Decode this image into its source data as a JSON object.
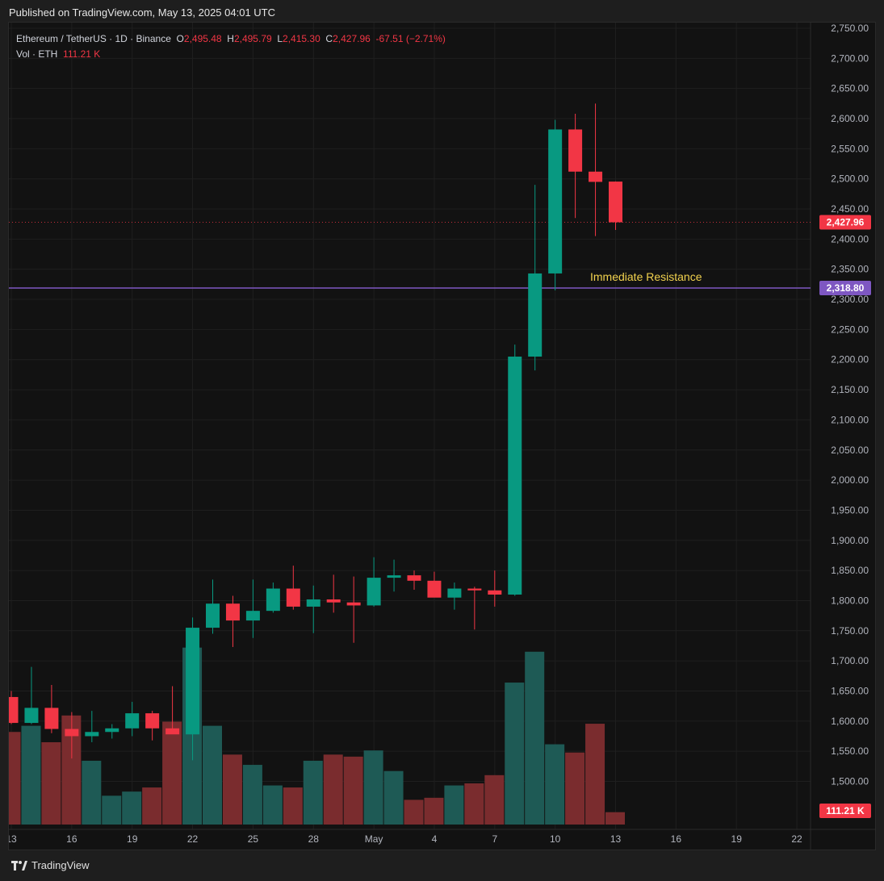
{
  "published": "Published on TradingView.com, May 13, 2025 04:01 UTC",
  "legend": {
    "symbol": "Ethereum / TetherUS · 1D · Binance",
    "o_label": "O",
    "o": "2,495.48",
    "h_label": "H",
    "h": "2,495.79",
    "l_label": "L",
    "l": "2,415.30",
    "c_label": "C",
    "c": "2,427.96",
    "change": "-67.51 (−2.71%)",
    "vol_label": "Vol · ETH",
    "vol": "111.21 K"
  },
  "brand": "TradingView",
  "colors": {
    "up": "#089981",
    "down": "#f23645",
    "bg": "#121212",
    "grid": "#1f1f1f",
    "resistance": "#7e57c2",
    "annotation": "#f2d24e",
    "vol_up": "#1e5a55",
    "vol_down": "#7a2c2e"
  },
  "chart_data": {
    "type": "candlestick",
    "price_axis": {
      "ticks": [
        "2,750.00",
        "2,700.00",
        "2,650.00",
        "2,600.00",
        "2,550.00",
        "2,500.00",
        "2,450.00",
        "2,400.00",
        "2,350.00",
        "2,300.00",
        "2,250.00",
        "2,200.00",
        "2,150.00",
        "2,100.00",
        "2,050.00",
        "2,000.00",
        "1,950.00",
        "1,900.00",
        "1,850.00",
        "1,800.00",
        "1,750.00",
        "1,700.00",
        "1,650.00",
        "1,600.00",
        "1,550.00",
        "1,500.00"
      ],
      "ylim": [
        1480,
        2765
      ]
    },
    "time_axis": {
      "labels": [
        "13",
        "16",
        "19",
        "22",
        "25",
        "28",
        "May",
        "4",
        "7",
        "10",
        "13",
        "16",
        "19",
        "22"
      ]
    },
    "candles": [
      {
        "date": "2025-04-12",
        "o": 1640,
        "h": 1650,
        "l": 1595,
        "c": 1597
      },
      {
        "date": "2025-04-13",
        "o": 1597,
        "h": 1690,
        "l": 1595,
        "c": 1622
      },
      {
        "date": "2025-04-14",
        "o": 1622,
        "h": 1660,
        "l": 1580,
        "c": 1587
      },
      {
        "date": "2025-04-15",
        "o": 1587,
        "h": 1615,
        "l": 1538,
        "c": 1575
      },
      {
        "date": "2025-04-16",
        "o": 1575,
        "h": 1617,
        "l": 1565,
        "c": 1582
      },
      {
        "date": "2025-04-17",
        "o": 1582,
        "h": 1595,
        "l": 1571,
        "c": 1588
      },
      {
        "date": "2025-04-18",
        "o": 1588,
        "h": 1632,
        "l": 1575,
        "c": 1613
      },
      {
        "date": "2025-04-19",
        "o": 1613,
        "h": 1617,
        "l": 1568,
        "c": 1588
      },
      {
        "date": "2025-04-20",
        "o": 1588,
        "h": 1658,
        "l": 1580,
        "c": 1578
      },
      {
        "date": "2025-04-21",
        "o": 1578,
        "h": 1772,
        "l": 1535,
        "c": 1755
      },
      {
        "date": "2025-04-22",
        "o": 1755,
        "h": 1835,
        "l": 1745,
        "c": 1795
      },
      {
        "date": "2025-04-23",
        "o": 1795,
        "h": 1808,
        "l": 1723,
        "c": 1767
      },
      {
        "date": "2025-04-24",
        "o": 1767,
        "h": 1835,
        "l": 1738,
        "c": 1783
      },
      {
        "date": "2025-04-25",
        "o": 1783,
        "h": 1830,
        "l": 1780,
        "c": 1820
      },
      {
        "date": "2025-04-26",
        "o": 1820,
        "h": 1858,
        "l": 1785,
        "c": 1790
      },
      {
        "date": "2025-04-27",
        "o": 1790,
        "h": 1825,
        "l": 1746,
        "c": 1802
      },
      {
        "date": "2025-04-28",
        "o": 1802,
        "h": 1843,
        "l": 1780,
        "c": 1797
      },
      {
        "date": "2025-04-29",
        "o": 1797,
        "h": 1840,
        "l": 1730,
        "c": 1792
      },
      {
        "date": "2025-04-30",
        "o": 1792,
        "h": 1872,
        "l": 1790,
        "c": 1838
      },
      {
        "date": "2025-05-01",
        "o": 1838,
        "h": 1868,
        "l": 1815,
        "c": 1842
      },
      {
        "date": "2025-05-02",
        "o": 1842,
        "h": 1850,
        "l": 1818,
        "c": 1833
      },
      {
        "date": "2025-05-03",
        "o": 1833,
        "h": 1848,
        "l": 1808,
        "c": 1805
      },
      {
        "date": "2025-05-04",
        "o": 1805,
        "h": 1830,
        "l": 1785,
        "c": 1820
      },
      {
        "date": "2025-05-05",
        "o": 1820,
        "h": 1823,
        "l": 1752,
        "c": 1817
      },
      {
        "date": "2025-05-06",
        "o": 1817,
        "h": 1850,
        "l": 1790,
        "c": 1810
      },
      {
        "date": "2025-05-07",
        "o": 1810,
        "h": 2225,
        "l": 1808,
        "c": 2205
      },
      {
        "date": "2025-05-08",
        "o": 2205,
        "h": 2490,
        "l": 2182,
        "c": 2343
      },
      {
        "date": "2025-05-09",
        "o": 2343,
        "h": 2598,
        "l": 2315,
        "c": 2582
      },
      {
        "date": "2025-05-10",
        "o": 2582,
        "h": 2608,
        "l": 2435,
        "c": 2512
      },
      {
        "date": "2025-05-11",
        "o": 2512,
        "h": 2625,
        "l": 2405,
        "c": 2495
      },
      {
        "date": "2025-05-12",
        "o": 2495.48,
        "h": 2495.79,
        "l": 2415.3,
        "c": 2427.96
      }
    ],
    "volume": [
      {
        "value": "",
        "dir": "down",
        "v": 0.45
      },
      {
        "value": "",
        "dir": "up",
        "v": 0.48
      },
      {
        "value": "",
        "dir": "down",
        "v": 0.4
      },
      {
        "value": "",
        "dir": "down",
        "v": 0.53
      },
      {
        "value": "",
        "dir": "up",
        "v": 0.31
      },
      {
        "value": "",
        "dir": "up",
        "v": 0.14
      },
      {
        "value": "",
        "dir": "up",
        "v": 0.16
      },
      {
        "value": "",
        "dir": "down",
        "v": 0.18
      },
      {
        "value": "",
        "dir": "down",
        "v": 0.5
      },
      {
        "value": "",
        "dir": "up",
        "v": 0.86
      },
      {
        "value": "",
        "dir": "up",
        "v": 0.48
      },
      {
        "value": "",
        "dir": "down",
        "v": 0.34
      },
      {
        "value": "",
        "dir": "up",
        "v": 0.29
      },
      {
        "value": "",
        "dir": "up",
        "v": 0.19
      },
      {
        "value": "",
        "dir": "down",
        "v": 0.18
      },
      {
        "value": "",
        "dir": "up",
        "v": 0.31
      },
      {
        "value": "",
        "dir": "down",
        "v": 0.34
      },
      {
        "value": "",
        "dir": "down",
        "v": 0.33
      },
      {
        "value": "",
        "dir": "up",
        "v": 0.36
      },
      {
        "value": "",
        "dir": "up",
        "v": 0.26
      },
      {
        "value": "",
        "dir": "down",
        "v": 0.12
      },
      {
        "value": "",
        "dir": "down",
        "v": 0.13
      },
      {
        "value": "",
        "dir": "up",
        "v": 0.19
      },
      {
        "value": "",
        "dir": "down",
        "v": 0.2
      },
      {
        "value": "",
        "dir": "down",
        "v": 0.24
      },
      {
        "value": "",
        "dir": "up",
        "v": 0.69
      },
      {
        "value": "",
        "dir": "up",
        "v": 0.84
      },
      {
        "value": "",
        "dir": "up",
        "v": 0.39
      },
      {
        "value": "",
        "dir": "down",
        "v": 0.35
      },
      {
        "value": "",
        "dir": "down",
        "v": 0.49
      },
      {
        "value": "",
        "dir": "down",
        "v": 0.06
      }
    ],
    "current_price": {
      "value": 2427.96,
      "label": "2,427.96"
    },
    "resistance": {
      "value": 2318.8,
      "label": "2,318.80",
      "annotation": "Immediate Resistance"
    },
    "volume_label": "111.21 K"
  }
}
